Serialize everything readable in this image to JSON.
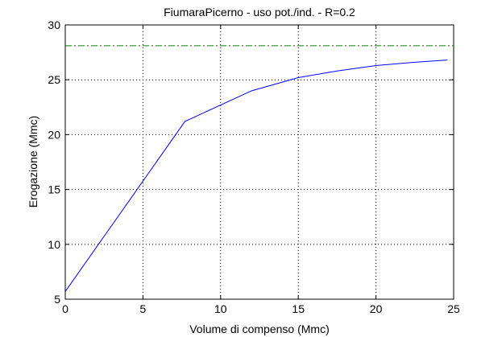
{
  "chart_data": {
    "type": "line",
    "title": "FiumaraPicerno  -  uso pot./ind.  -   R=0.2",
    "xlabel": "Volume di compenso (Mmc)",
    "ylabel": "Erogazione (Mmc)",
    "xlim": [
      0,
      25
    ],
    "ylim": [
      5,
      30
    ],
    "xticks": [
      0,
      5,
      10,
      15,
      20,
      25
    ],
    "yticks": [
      5,
      10,
      15,
      20,
      25,
      30
    ],
    "grid": true,
    "series": [
      {
        "color": "#0000ff",
        "linestyle": "solid",
        "x": [
          0,
          7.7,
          10,
          12,
          15,
          17.5,
          20,
          22.5,
          24.6
        ],
        "values": [
          5.7,
          21.2,
          22.7,
          24.0,
          25.2,
          25.8,
          26.3,
          26.6,
          26.8
        ]
      },
      {
        "color": "#008000",
        "linestyle": "dashdot",
        "x": [
          0,
          25
        ],
        "values": [
          28.1,
          28.1
        ]
      }
    ]
  }
}
